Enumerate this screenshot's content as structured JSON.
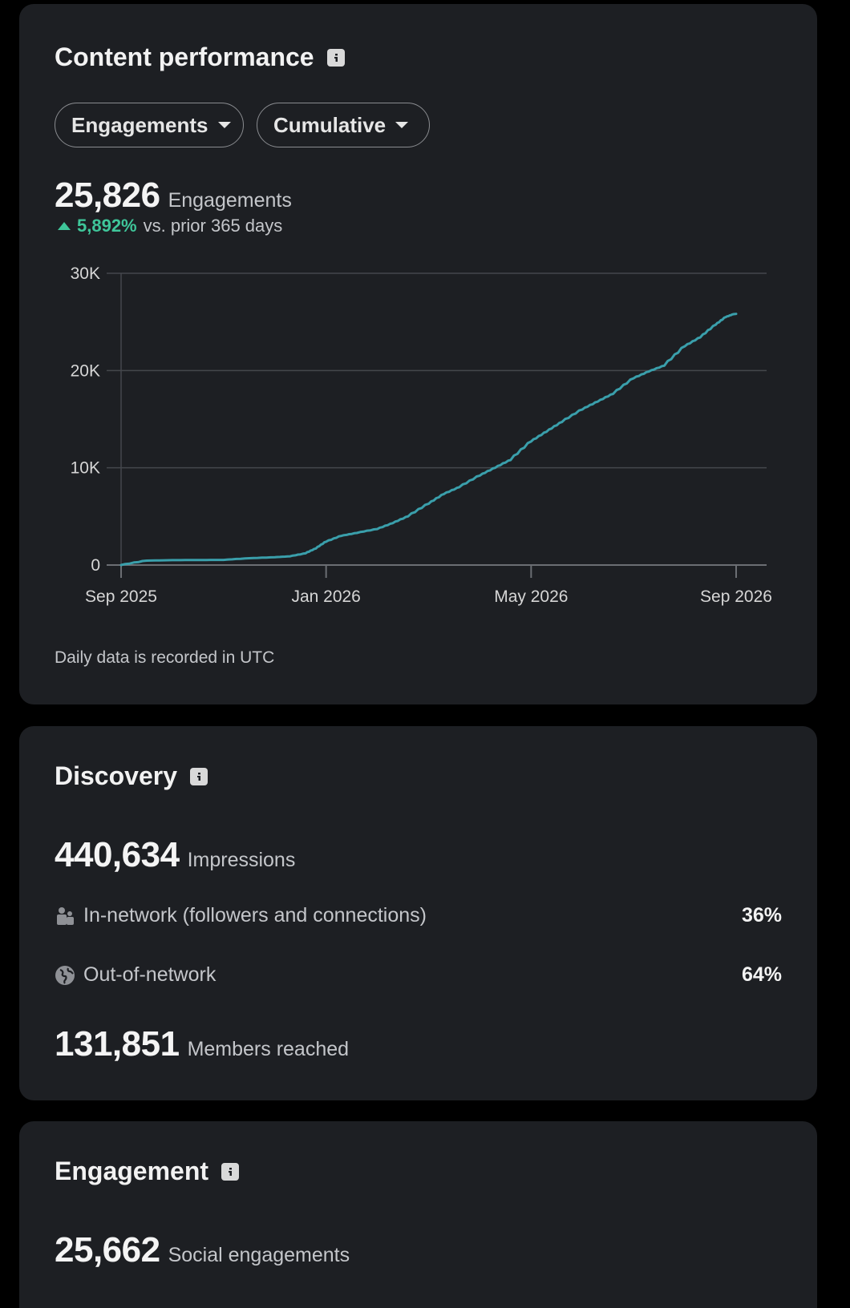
{
  "content_performance": {
    "title": "Content performance",
    "metric_dropdown": "Engagements",
    "mode_dropdown": "Cumulative",
    "total_value": "25,826",
    "total_label": "Engagements",
    "delta_pct": "5,892%",
    "delta_text": "vs. prior 365 days",
    "footnote": "Daily data is recorded in UTC",
    "accent_color": "#3a9fab",
    "delta_color": "#3fc69a"
  },
  "chart_data": {
    "type": "line",
    "x_tick_labels": [
      "Sep 2025",
      "Jan 2026",
      "May 2026",
      "Sep 2026"
    ],
    "y_tick_labels": [
      "0",
      "10K",
      "20K",
      "30K"
    ],
    "ylim": [
      0,
      30000
    ],
    "x_range_months": [
      0,
      12
    ],
    "grid": true,
    "series": [
      {
        "x": [
          0,
          0.5,
          1,
          1.5,
          2,
          2.5,
          3,
          3.3,
          3.6,
          3.8,
          4,
          4.3,
          4.6,
          5,
          5.3,
          5.6,
          6,
          6.3,
          6.6,
          7,
          7.3,
          7.6,
          8,
          8.3,
          8.6,
          9,
          9.3,
          9.6,
          10,
          10.3,
          10.6,
          11,
          11.3,
          11.6,
          11.8,
          11.95,
          12
        ],
        "y": [
          0,
          450,
          500,
          520,
          530,
          700,
          800,
          900,
          1200,
          1700,
          2400,
          3000,
          3300,
          3700,
          4300,
          5000,
          6300,
          7300,
          8000,
          9200,
          10000,
          10800,
          12700,
          13700,
          14700,
          16000,
          16800,
          17600,
          19200,
          19900,
          20500,
          22500,
          23400,
          24700,
          25500,
          25800,
          25826
        ]
      }
    ]
  },
  "discovery": {
    "title": "Discovery",
    "impressions_value": "440,634",
    "impressions_label": "Impressions",
    "in_network_label": "In-network (followers and connections)",
    "in_network_value": "36%",
    "out_network_label": "Out-of-network",
    "out_network_value": "64%",
    "members_value": "131,851",
    "members_label": "Members reached"
  },
  "engagement": {
    "title": "Engagement",
    "social_value": "25,662",
    "social_label": "Social engagements"
  }
}
